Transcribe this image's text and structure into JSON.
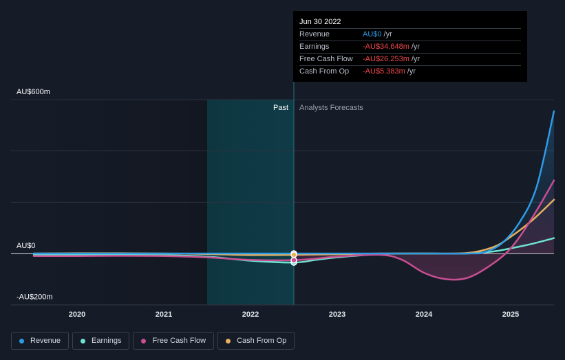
{
  "tooltip": {
    "date": "Jun 30 2022",
    "rows": [
      {
        "label": "Revenue",
        "value": "AU$0",
        "unit": "/yr",
        "color": "#2f9be6"
      },
      {
        "label": "Earnings",
        "value": "-AU$34.648m",
        "unit": "/yr",
        "color": "#f0474c"
      },
      {
        "label": "Free Cash Flow",
        "value": "-AU$26.253m",
        "unit": "/yr",
        "color": "#f0474c"
      },
      {
        "label": "Cash From Op",
        "value": "-AU$5.383m",
        "unit": "/yr",
        "color": "#f0474c"
      }
    ]
  },
  "legend": [
    {
      "label": "Revenue",
      "color": "#2f9be6"
    },
    {
      "label": "Earnings",
      "color": "#6fe3d2"
    },
    {
      "label": "Free Cash Flow",
      "color": "#c94f92"
    },
    {
      "label": "Cash From Op",
      "color": "#e8b15f"
    }
  ],
  "chart_data": {
    "type": "line",
    "title": "",
    "region_labels": {
      "past": "Past",
      "forecast": "Analysts Forecasts"
    },
    "y_tick_labels": [
      "AU$600m",
      "AU$0",
      "-AU$200m"
    ],
    "y_ticks": [
      600,
      0,
      -200
    ],
    "ylim": [
      -200,
      600
    ],
    "xlim": [
      2019.5,
      2025.5
    ],
    "x_tick_labels": [
      "2020",
      "2021",
      "2022",
      "2023",
      "2024",
      "2025"
    ],
    "x_ticks": [
      2020,
      2021,
      2022,
      2023,
      2024,
      2025
    ],
    "shade_start": 2021.5,
    "divider_x": 2022.5,
    "highlight_x": 2022.5,
    "series": [
      {
        "name": "Revenue",
        "color": "#2f9be6",
        "points": [
          [
            2019.5,
            0
          ],
          [
            2020,
            0
          ],
          [
            2020.5,
            0
          ],
          [
            2021,
            0
          ],
          [
            2021.5,
            0
          ],
          [
            2022,
            0
          ],
          [
            2022.5,
            0
          ],
          [
            2023,
            0
          ],
          [
            2023.5,
            0
          ],
          [
            2024,
            0
          ],
          [
            2024.5,
            0
          ],
          [
            2024.7,
            5
          ],
          [
            2024.9,
            40
          ],
          [
            2025.1,
            120
          ],
          [
            2025.3,
            260
          ],
          [
            2025.5,
            555
          ]
        ]
      },
      {
        "name": "Earnings",
        "color": "#6fe3d2",
        "points": [
          [
            2019.5,
            -5
          ],
          [
            2020,
            -6
          ],
          [
            2020.5,
            -6
          ],
          [
            2021,
            -7
          ],
          [
            2021.5,
            -12
          ],
          [
            2022,
            -28
          ],
          [
            2022.5,
            -35
          ],
          [
            2022.75,
            -25
          ],
          [
            2023,
            -15
          ],
          [
            2023.5,
            -2
          ],
          [
            2024,
            0
          ],
          [
            2024.5,
            0
          ],
          [
            2024.8,
            8
          ],
          [
            2025,
            20
          ],
          [
            2025.25,
            38
          ],
          [
            2025.5,
            60
          ]
        ]
      },
      {
        "name": "Free Cash Flow",
        "color": "#c94f92",
        "points": [
          [
            2019.5,
            -10
          ],
          [
            2020,
            -10
          ],
          [
            2020.5,
            -9
          ],
          [
            2021,
            -10
          ],
          [
            2021.5,
            -15
          ],
          [
            2022,
            -25
          ],
          [
            2022.5,
            -26
          ],
          [
            2022.75,
            -20
          ],
          [
            2023,
            -12
          ],
          [
            2023.5,
            -5
          ],
          [
            2023.75,
            -25
          ],
          [
            2024,
            -75
          ],
          [
            2024.25,
            -100
          ],
          [
            2024.5,
            -95
          ],
          [
            2024.75,
            -50
          ],
          [
            2025,
            20
          ],
          [
            2025.25,
            140
          ],
          [
            2025.5,
            285
          ]
        ]
      },
      {
        "name": "Cash From Op",
        "color": "#e8b15f",
        "points": [
          [
            2019.5,
            0
          ],
          [
            2020,
            1
          ],
          [
            2020.5,
            1
          ],
          [
            2021,
            0
          ],
          [
            2021.5,
            -2
          ],
          [
            2022,
            -6
          ],
          [
            2022.5,
            -5
          ],
          [
            2023,
            -3
          ],
          [
            2023.5,
            0
          ],
          [
            2024,
            0
          ],
          [
            2024.5,
            2
          ],
          [
            2024.8,
            25
          ],
          [
            2025,
            65
          ],
          [
            2025.25,
            130
          ],
          [
            2025.5,
            210
          ]
        ]
      }
    ]
  }
}
